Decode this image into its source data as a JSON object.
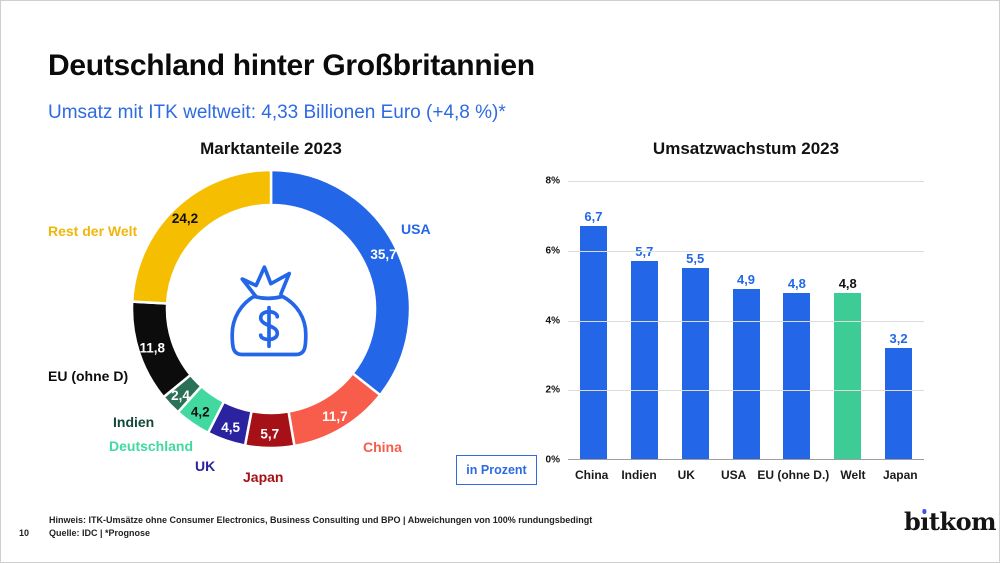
{
  "slide": {
    "title": "Deutschland hinter Großbritannien",
    "subtitle": "Umsatz mit ITK weltweit: 4,33 Billionen Euro (+4,8 %)*",
    "page_number": "10",
    "footnote_line1": "Hinweis: ITK-Umsätze ohne Consumer Electronics, Business Consulting und BPO  | Abweichungen von 100% rundungsbedingt",
    "footnote_line2": "Quelle: IDC | *Prognose",
    "logo_text_prefix": "b",
    "logo_text_i": "ı",
    "logo_text_suffix": "tkom"
  },
  "chart_data": [
    {
      "type": "pie",
      "title": "Marktanteile 2023",
      "center_icon": "money-bag-icon",
      "start_angle_deg": 0,
      "direction": "clockwise",
      "segments": [
        {
          "label": "USA",
          "value": 35.7,
          "value_label": "35,7",
          "color": "#2366E8",
          "label_color": "#2366E8",
          "value_text_color": "#ffffff"
        },
        {
          "label": "China",
          "value": 11.7,
          "value_label": "11,7",
          "color": "#F85C4B",
          "label_color": "#F85C4B",
          "value_text_color": "#ffffff"
        },
        {
          "label": "Japan",
          "value": 5.7,
          "value_label": "5,7",
          "color": "#A51117",
          "label_color": "#A51117",
          "value_text_color": "#ffffff"
        },
        {
          "label": "UK",
          "value": 4.5,
          "value_label": "4,5",
          "color": "#2B22A0",
          "label_color": "#2B22A0",
          "value_text_color": "#ffffff"
        },
        {
          "label": "Deutschland",
          "value": 4.2,
          "value_label": "4,2",
          "color": "#41D9A0",
          "label_color": "#41D9A0",
          "value_text_color": "#111111"
        },
        {
          "label": "Indien",
          "value": 2.4,
          "value_label": "2,4",
          "color": "#2B7157",
          "label_color": "#14463A",
          "value_text_color": "#ffffff"
        },
        {
          "label": "EU (ohne D)",
          "value": 11.8,
          "value_label": "11,8",
          "color": "#0C0C0C",
          "label_color": "#0C0C0C",
          "value_text_color": "#ffffff"
        },
        {
          "label": "Rest der Welt",
          "value": 24.2,
          "value_label": "24,2",
          "color": "#F6BE00",
          "label_color": "#F0B70B",
          "value_text_color": "#111111"
        }
      ]
    },
    {
      "type": "bar",
      "title": "Umsatzwachstum 2023",
      "unit_box": "in Prozent",
      "categories": [
        "China",
        "Indien",
        "UK",
        "USA",
        "EU (ohne D.)",
        "Welt",
        "Japan"
      ],
      "values": [
        6.7,
        5.7,
        5.5,
        4.9,
        4.8,
        4.8,
        3.2
      ],
      "value_labels": [
        "6,7",
        "5,7",
        "5,5",
        "4,9",
        "4,8",
        "4,8",
        "3,2"
      ],
      "bar_colors": [
        "#2366E8",
        "#2366E8",
        "#2366E8",
        "#2366E8",
        "#2366E8",
        "#3DCB96",
        "#2366E8"
      ],
      "value_label_colors": [
        "#2366E8",
        "#2366E8",
        "#2366E8",
        "#2366E8",
        "#2366E8",
        "#111111",
        "#2366E8"
      ],
      "ylim": [
        0,
        8
      ],
      "y_ticks": [
        "8%",
        "6%",
        "4%",
        "2%",
        "0%"
      ],
      "grid": true,
      "legend": "none"
    }
  ],
  "colors": {
    "accent_blue": "#2366E8",
    "highlight_green": "#3DCB96",
    "grid_gray": "#dcdcdc",
    "logo_dot_blue": "#3f51e3"
  }
}
